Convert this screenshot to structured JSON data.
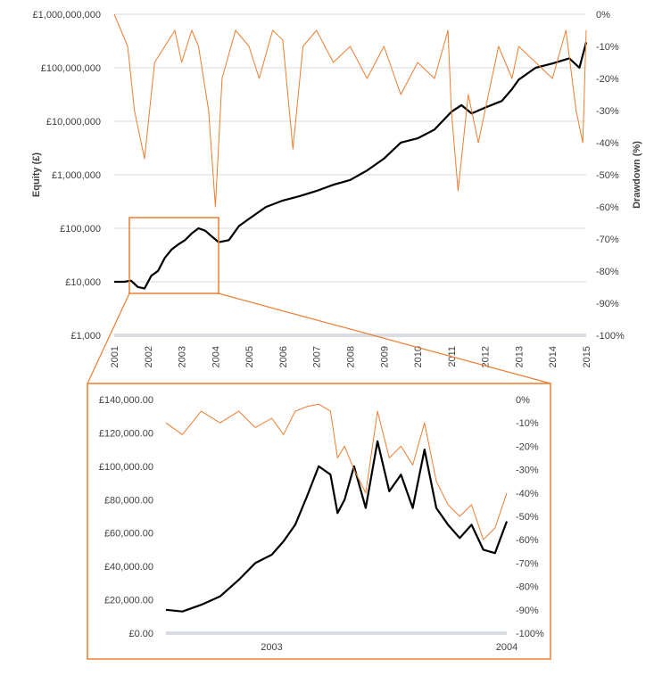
{
  "chart_data": [
    {
      "type": "line",
      "ylabel": "Equity (£)",
      "y2label": "Drawdown (%)",
      "yscale": "log",
      "ylim": [
        1000,
        1000000000
      ],
      "y2lim": [
        -100,
        0
      ],
      "xlim": [
        2001,
        2015
      ],
      "y_ticks": [
        "£1,000",
        "£10,000",
        "£100,000",
        "£1,000,000",
        "£10,000,000",
        "£100,000,000",
        "£1,000,000,000"
      ],
      "y2_ticks": [
        "-100%",
        "-90%",
        "-80%",
        "-70%",
        "-60%",
        "-50%",
        "-40%",
        "-30%",
        "-20%",
        "-10%",
        "0%"
      ],
      "x_ticks": [
        "2001",
        "2002",
        "2003",
        "2004",
        "2005",
        "2006",
        "2007",
        "2008",
        "2009",
        "2010",
        "2011",
        "2012",
        "2013",
        "2014",
        "2015"
      ],
      "grid": "horizontal",
      "series": [
        {
          "color": "#000000",
          "axis": "left",
          "x": [
            2001.0,
            2001.3,
            2001.5,
            2001.7,
            2001.9,
            2002.1,
            2002.3,
            2002.5,
            2002.7,
            2002.9,
            2003.1,
            2003.3,
            2003.5,
            2003.7,
            2003.9,
            2004.1,
            2004.4,
            2004.7,
            2005.0,
            2005.5,
            2006.0,
            2006.5,
            2007.0,
            2007.5,
            2008.0,
            2008.5,
            2009.0,
            2009.5,
            2010.0,
            2010.5,
            2011.0,
            2011.3,
            2011.6,
            2012.0,
            2012.5,
            2012.8,
            2013.0,
            2013.5,
            2014.0,
            2014.5,
            2014.8,
            2015.0
          ],
          "values": [
            10000,
            10000,
            10500,
            8000,
            7500,
            13000,
            16000,
            28000,
            40000,
            50000,
            60000,
            80000,
            100000,
            90000,
            70000,
            55000,
            60000,
            110000,
            150000,
            250000,
            330000,
            400000,
            500000,
            650000,
            800000,
            1200000,
            2000000,
            4000000,
            4800000,
            7000000,
            15000000,
            20000000,
            14000000,
            18000000,
            24000000,
            40000000,
            60000000,
            100000000,
            120000000,
            150000000,
            100000000,
            300000000
          ]
        },
        {
          "color": "#ED7D31",
          "axis": "right",
          "x": [
            2001.0,
            2001.2,
            2001.4,
            2001.6,
            2001.9,
            2002.2,
            2002.5,
            2002.8,
            2003.0,
            2003.3,
            2003.5,
            2003.8,
            2004.0,
            2004.2,
            2004.6,
            2005.0,
            2005.3,
            2005.7,
            2006.0,
            2006.3,
            2006.6,
            2007.0,
            2007.5,
            2008.0,
            2008.5,
            2009.0,
            2009.5,
            2010.0,
            2010.5,
            2010.9,
            2011.0,
            2011.2,
            2011.5,
            2011.8,
            2012.0,
            2012.4,
            2012.8,
            2013.0,
            2013.5,
            2014.0,
            2014.4,
            2014.7,
            2014.9,
            2015.0
          ],
          "values": [
            0,
            -5,
            -10,
            -30,
            -45,
            -15,
            -10,
            -5,
            -15,
            -5,
            -10,
            -30,
            -60,
            -20,
            -5,
            -10,
            -20,
            -5,
            -8,
            -42,
            -10,
            -5,
            -15,
            -10,
            -20,
            -10,
            -25,
            -15,
            -20,
            -5,
            -30,
            -55,
            -25,
            -40,
            -30,
            -10,
            -20,
            -10,
            -15,
            -20,
            -5,
            -30,
            -40,
            -5
          ]
        }
      ]
    },
    {
      "type": "line",
      "ylim": [
        0,
        140000
      ],
      "y2lim": [
        -100,
        0
      ],
      "xlim": [
        2002.55,
        2004.0
      ],
      "y_ticks": [
        "£0.00",
        "£20,000.00",
        "£40,000.00",
        "£60,000.00",
        "£80,000.00",
        "£100,000.00",
        "£120,000.00",
        "£140,000.00"
      ],
      "y2_ticks": [
        "-100%",
        "-90%",
        "-80%",
        "-70%",
        "-60%",
        "-50%",
        "-40%",
        "-30%",
        "-20%",
        "-10%",
        "0%"
      ],
      "x_ticks": [
        "2003",
        "2004"
      ],
      "series": [
        {
          "color": "#000000",
          "axis": "left",
          "x": [
            2002.55,
            2002.62,
            2002.7,
            2002.78,
            2002.86,
            2002.93,
            2003.0,
            2003.05,
            2003.1,
            2003.15,
            2003.2,
            2003.25,
            2003.28,
            2003.31,
            2003.35,
            2003.4,
            2003.45,
            2003.5,
            2003.55,
            2003.6,
            2003.65,
            2003.7,
            2003.75,
            2003.8,
            2003.85,
            2003.9,
            2003.95,
            2004.0
          ],
          "values": [
            14000,
            13000,
            17000,
            22000,
            32000,
            42000,
            47000,
            55000,
            65000,
            82000,
            100000,
            95000,
            72000,
            80000,
            100000,
            75000,
            115000,
            85000,
            95000,
            75000,
            110000,
            75000,
            65000,
            57000,
            65000,
            50000,
            48000,
            67000
          ]
        },
        {
          "color": "#ED7D31",
          "axis": "right",
          "x": [
            2002.55,
            2002.62,
            2002.7,
            2002.78,
            2002.86,
            2002.93,
            2003.0,
            2003.05,
            2003.1,
            2003.15,
            2003.2,
            2003.25,
            2003.28,
            2003.31,
            2003.35,
            2003.4,
            2003.45,
            2003.5,
            2003.55,
            2003.6,
            2003.65,
            2003.7,
            2003.75,
            2003.8,
            2003.85,
            2003.9,
            2003.95,
            2004.0
          ],
          "values": [
            -10,
            -15,
            -5,
            -10,
            -5,
            -12,
            -8,
            -15,
            -5,
            -3,
            -2,
            -5,
            -25,
            -20,
            -30,
            -40,
            -5,
            -25,
            -20,
            -28,
            -10,
            -35,
            -45,
            -50,
            -45,
            -60,
            -55,
            -40
          ]
        }
      ]
    }
  ]
}
